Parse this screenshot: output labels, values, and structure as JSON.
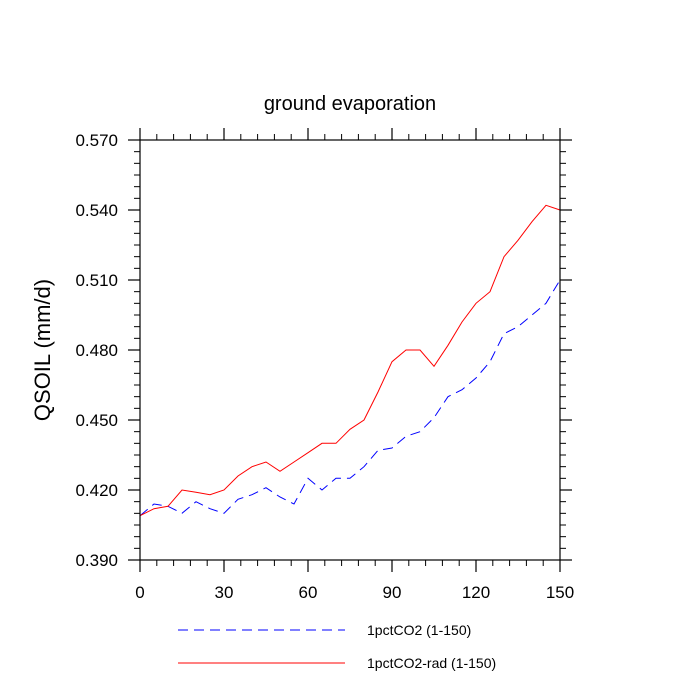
{
  "chart_data": {
    "type": "line",
    "title": "ground evaporation",
    "xlabel": "",
    "ylabel": "QSOIL  (mm/d)",
    "xlim": [
      0,
      150
    ],
    "ylim": [
      0.39,
      0.57
    ],
    "xticks": [
      0,
      30,
      60,
      90,
      120,
      150
    ],
    "xtick_labels": [
      "0",
      "30",
      "60",
      "90",
      "120",
      "150"
    ],
    "yticks": [
      0.39,
      0.42,
      0.45,
      0.48,
      0.51,
      0.54,
      0.57
    ],
    "ytick_labels": [
      "0.390",
      "0.420",
      "0.450",
      "0.480",
      "0.510",
      "0.540",
      "0.570"
    ],
    "grid": false,
    "legend_position": "bottom",
    "series": [
      {
        "name": "1pctCO2 (1-150)",
        "color": "#0000ff",
        "style": "dashed",
        "x": [
          0,
          5,
          10,
          15,
          20,
          25,
          30,
          35,
          40,
          45,
          50,
          55,
          60,
          65,
          70,
          75,
          80,
          85,
          90,
          95,
          100,
          105,
          110,
          115,
          120,
          125,
          130,
          135,
          140,
          145,
          150
        ],
        "y": [
          0.409,
          0.414,
          0.413,
          0.41,
          0.415,
          0.412,
          0.41,
          0.416,
          0.418,
          0.421,
          0.417,
          0.414,
          0.425,
          0.42,
          0.425,
          0.425,
          0.43,
          0.437,
          0.438,
          0.443,
          0.445,
          0.451,
          0.46,
          0.463,
          0.468,
          0.475,
          0.487,
          0.49,
          0.495,
          0.5,
          0.51
        ]
      },
      {
        "name": "1pctCO2-rad (1-150)",
        "color": "#ff0000",
        "style": "solid",
        "x": [
          0,
          5,
          10,
          15,
          20,
          25,
          30,
          35,
          40,
          45,
          50,
          55,
          60,
          65,
          70,
          75,
          80,
          85,
          90,
          95,
          100,
          105,
          110,
          115,
          120,
          125,
          130,
          135,
          140,
          145,
          150
        ],
        "y": [
          0.409,
          0.412,
          0.413,
          0.42,
          0.419,
          0.418,
          0.42,
          0.426,
          0.43,
          0.432,
          0.428,
          0.432,
          0.436,
          0.44,
          0.44,
          0.446,
          0.45,
          0.462,
          0.475,
          0.48,
          0.48,
          0.473,
          0.482,
          0.492,
          0.5,
          0.505,
          0.52,
          0.527,
          0.535,
          0.542,
          0.54
        ]
      }
    ]
  }
}
